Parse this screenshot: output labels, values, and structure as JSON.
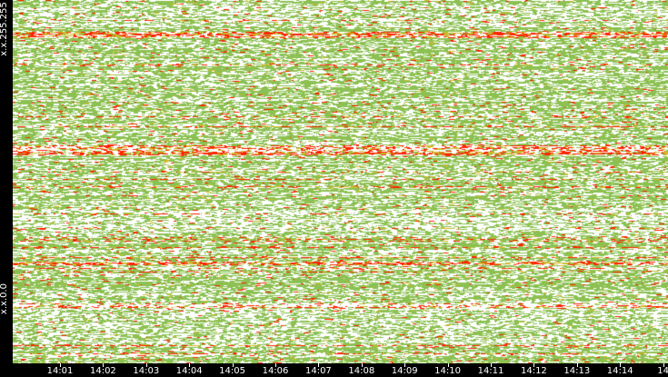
{
  "chart_data": {
    "type": "heatmap",
    "y_axis": {
      "top_label": "x.x.255.255",
      "bottom_label": "x.x.0.0"
    },
    "x_axis": {
      "ticks": [
        "14:01",
        "14:02",
        "14:03",
        "14:04",
        "14:05",
        "14:06",
        "14:07",
        "14:08",
        "14:09",
        "14:10",
        "14:11",
        "14:12",
        "14:13",
        "14:14",
        "14"
      ]
    },
    "colors": {
      "background": "#000000",
      "empty": "#ffffff",
      "low": "#8cc152",
      "mid": "#cdbb2e",
      "high": "#ff2200",
      "text": "#ffffff"
    }
  }
}
